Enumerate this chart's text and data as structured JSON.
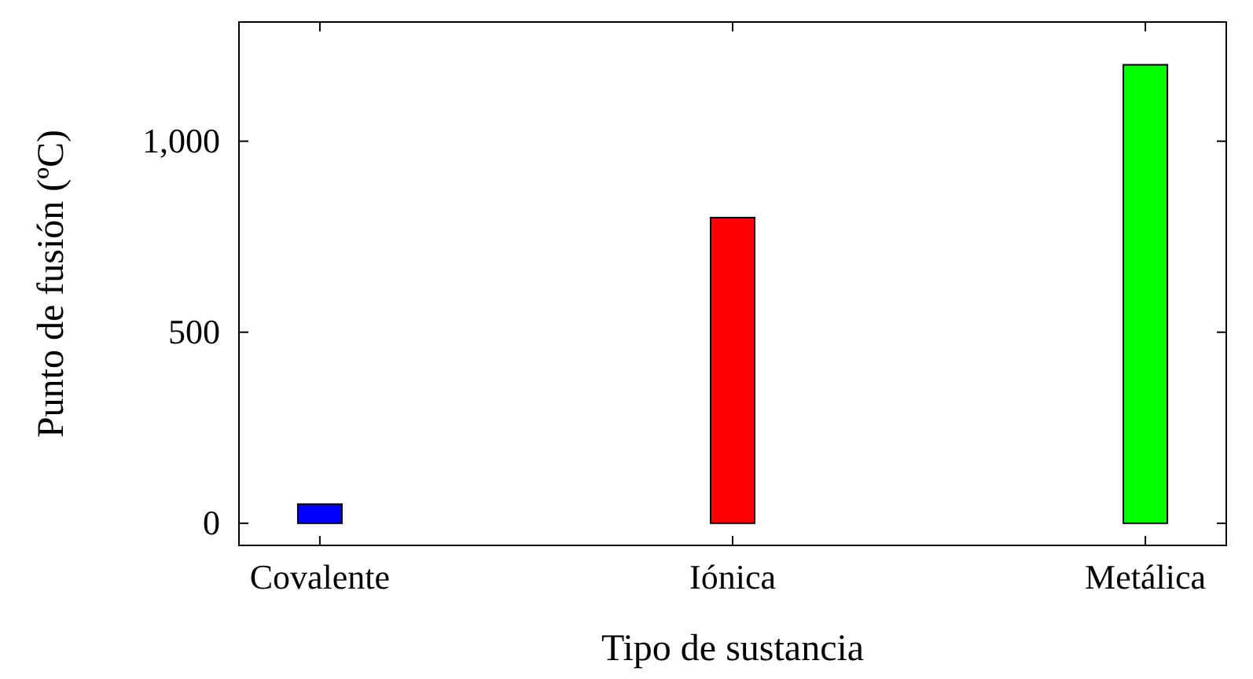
{
  "chart_data": {
    "type": "bar",
    "xlabel": "Tipo de sustancia",
    "ylabel": "Punto de fusión (ºC)",
    "categories": [
      "Covalente",
      "Iónica",
      "Metálica"
    ],
    "values": [
      50,
      800,
      1200
    ],
    "colors": [
      "#0000ff",
      "#ff0000",
      "#00ff00"
    ],
    "ylim": [
      -58,
      1312
    ],
    "yticks": [
      0,
      500,
      {
        "value": 1000,
        "label": "1,000"
      }
    ],
    "grid": false
  }
}
